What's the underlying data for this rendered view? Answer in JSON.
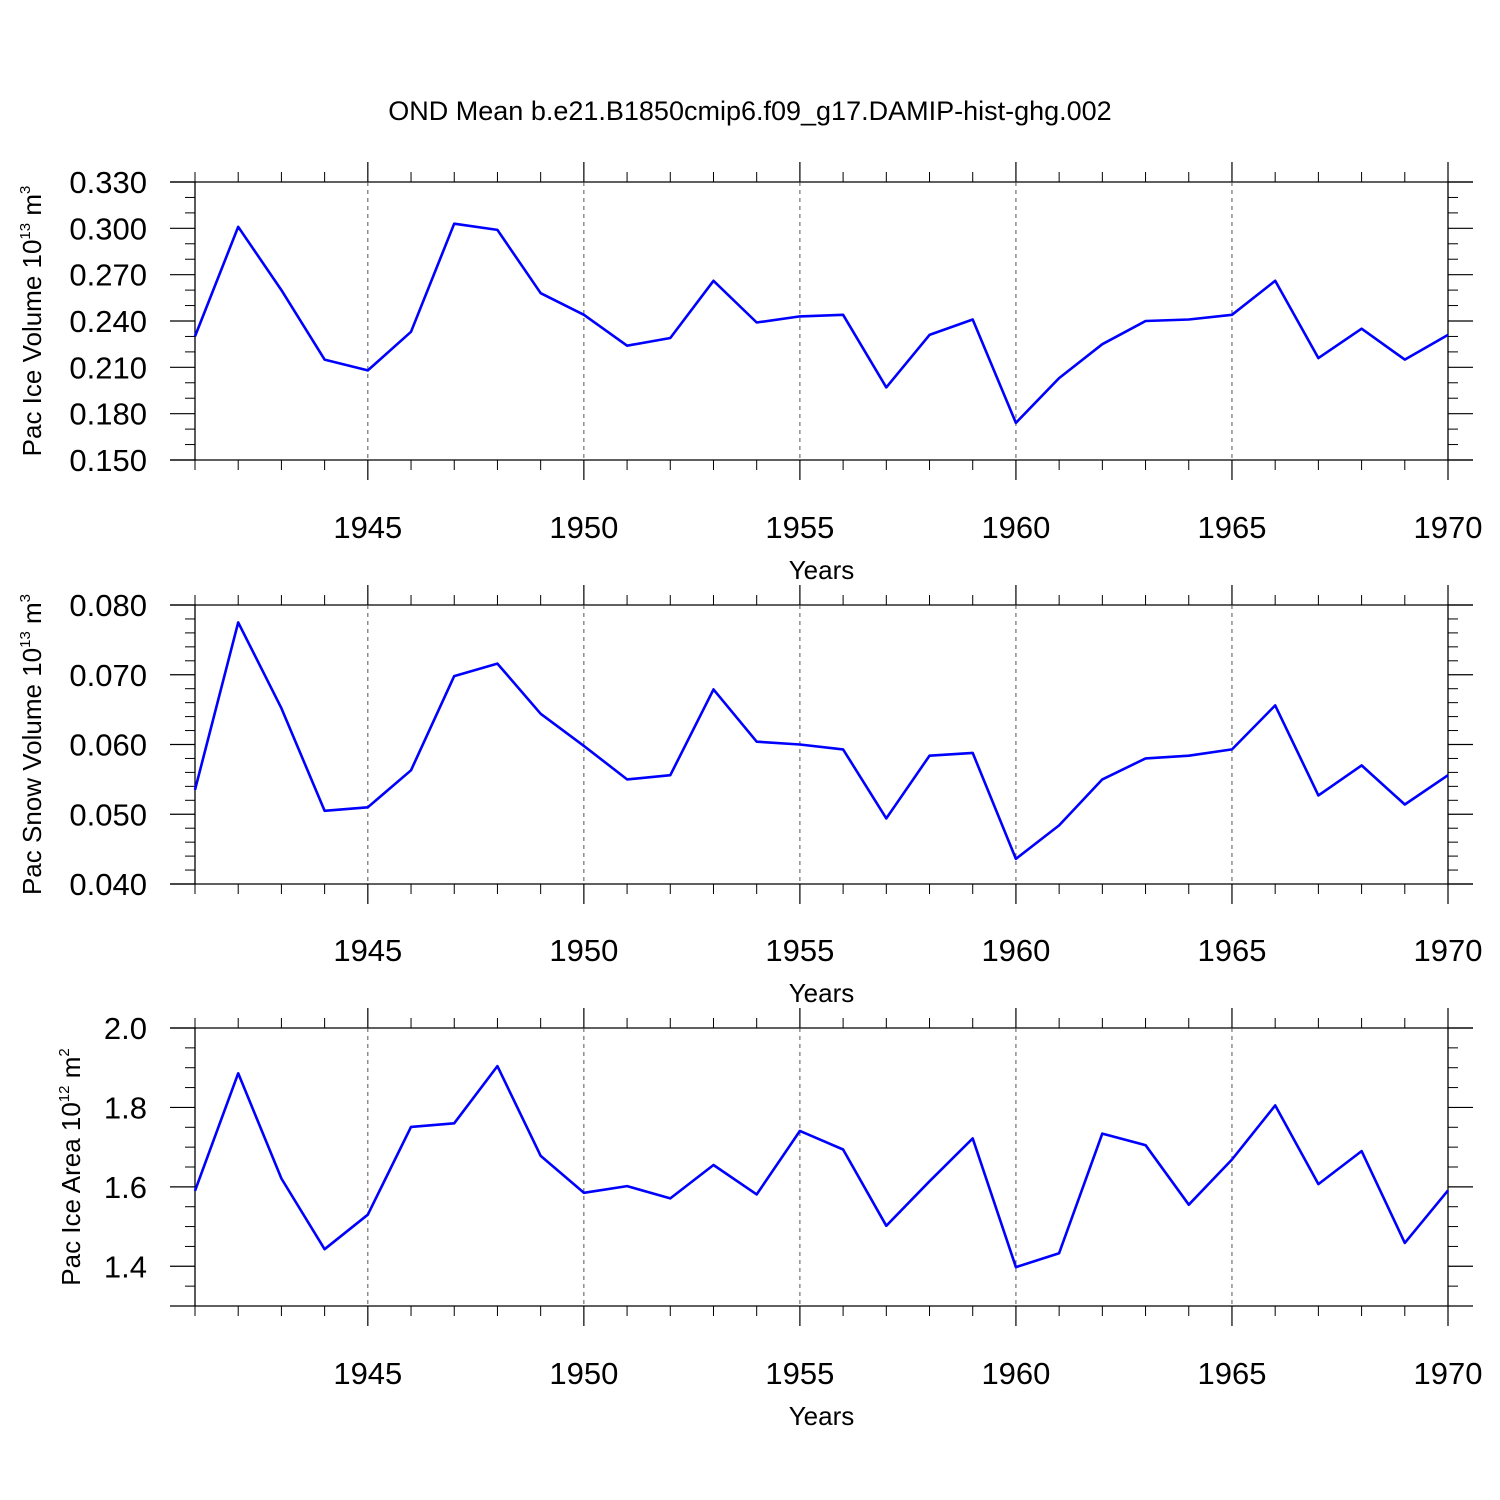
{
  "title": "OND Mean b.e21.B1850cmip6.f09_g17.DAMIP-hist-ghg.002",
  "line_color": "#0000ff",
  "chart_data": [
    {
      "type": "line",
      "ylabel": "Pac Ice Volume 10",
      "ylabel_exp": "13",
      "ylabel_unit": " m",
      "ylabel_unit_exp": "3",
      "xlabel": "Years",
      "xlim": [
        1941,
        1970
      ],
      "ylim": [
        0.15,
        0.33
      ],
      "yticks": [
        0.15,
        0.18,
        0.21,
        0.24,
        0.27,
        0.3,
        0.33
      ],
      "ytick_labels": [
        "0.150",
        "0.180",
        "0.210",
        "0.240",
        "0.270",
        "0.300",
        "0.330"
      ],
      "yminor": 0.01,
      "xticks": [
        1945,
        1950,
        1955,
        1960,
        1965,
        1970
      ],
      "xtick_labels": [
        "1945",
        "1950",
        "1955",
        "1960",
        "1965",
        "1970"
      ],
      "grid": "dashed vertical at major x ticks",
      "x": [
        1941,
        1942,
        1943,
        1944,
        1945,
        1946,
        1947,
        1948,
        1949,
        1950,
        1951,
        1952,
        1953,
        1954,
        1955,
        1956,
        1957,
        1958,
        1959,
        1960,
        1961,
        1962,
        1963,
        1964,
        1965,
        1966,
        1967,
        1968,
        1969,
        1970
      ],
      "values": [
        0.23,
        0.301,
        0.26,
        0.215,
        0.208,
        0.233,
        0.303,
        0.299,
        0.258,
        0.244,
        0.224,
        0.229,
        0.266,
        0.239,
        0.243,
        0.244,
        0.197,
        0.231,
        0.241,
        0.174,
        0.203,
        0.225,
        0.24,
        0.241,
        0.244,
        0.266,
        0.216,
        0.235,
        0.215,
        0.231
      ]
    },
    {
      "type": "line",
      "ylabel": "Pac Snow Volume 10",
      "ylabel_exp": "13",
      "ylabel_unit": " m",
      "ylabel_unit_exp": "3",
      "xlabel": "Years",
      "xlim": [
        1941,
        1970
      ],
      "ylim": [
        0.04,
        0.08
      ],
      "yticks": [
        0.04,
        0.05,
        0.06,
        0.07,
        0.08
      ],
      "ytick_labels": [
        "0.040",
        "0.050",
        "0.060",
        "0.070",
        "0.080"
      ],
      "yminor": 0.002,
      "xticks": [
        1945,
        1950,
        1955,
        1960,
        1965,
        1970
      ],
      "xtick_labels": [
        "1945",
        "1950",
        "1955",
        "1960",
        "1965",
        "1970"
      ],
      "grid": "dashed vertical at major x ticks",
      "x": [
        1941,
        1942,
        1943,
        1944,
        1945,
        1946,
        1947,
        1948,
        1949,
        1950,
        1951,
        1952,
        1953,
        1954,
        1955,
        1956,
        1957,
        1958,
        1959,
        1960,
        1961,
        1962,
        1963,
        1964,
        1965,
        1966,
        1967,
        1968,
        1969,
        1970
      ],
      "values": [
        0.0535,
        0.0775,
        0.0652,
        0.0505,
        0.051,
        0.0563,
        0.0698,
        0.0716,
        0.0644,
        0.0598,
        0.055,
        0.0556,
        0.0679,
        0.0604,
        0.06,
        0.0593,
        0.0494,
        0.0584,
        0.0588,
        0.0436,
        0.0484,
        0.055,
        0.058,
        0.0584,
        0.0593,
        0.0656,
        0.0527,
        0.057,
        0.0514,
        0.0556
      ]
    },
    {
      "type": "line",
      "ylabel": "Pac Ice Area 10",
      "ylabel_exp": "12",
      "ylabel_unit": " m",
      "ylabel_unit_exp": "2",
      "xlabel": "Years",
      "xlim": [
        1941,
        1970
      ],
      "ylim": [
        1.3,
        2.0
      ],
      "yticks": [
        1.4,
        1.6,
        1.8,
        2.0
      ],
      "ytick_labels": [
        "1.4",
        "1.6",
        "1.8",
        "2.0"
      ],
      "yminor": 0.05,
      "xticks": [
        1945,
        1950,
        1955,
        1960,
        1965,
        1970
      ],
      "xtick_labels": [
        "1945",
        "1950",
        "1955",
        "1960",
        "1965",
        "1970"
      ],
      "grid": "dashed vertical at major x ticks",
      "x": [
        1941,
        1942,
        1943,
        1944,
        1945,
        1946,
        1947,
        1948,
        1949,
        1950,
        1951,
        1952,
        1953,
        1954,
        1955,
        1956,
        1957,
        1958,
        1959,
        1960,
        1961,
        1962,
        1963,
        1964,
        1965,
        1966,
        1967,
        1968,
        1969,
        1970
      ],
      "values": [
        1.59,
        1.886,
        1.621,
        1.443,
        1.53,
        1.751,
        1.76,
        1.904,
        1.678,
        1.585,
        1.602,
        1.571,
        1.655,
        1.581,
        1.741,
        1.694,
        1.502,
        1.614,
        1.722,
        1.398,
        1.433,
        1.734,
        1.705,
        1.555,
        1.669,
        1.805,
        1.607,
        1.69,
        1.459,
        1.591
      ]
    }
  ]
}
